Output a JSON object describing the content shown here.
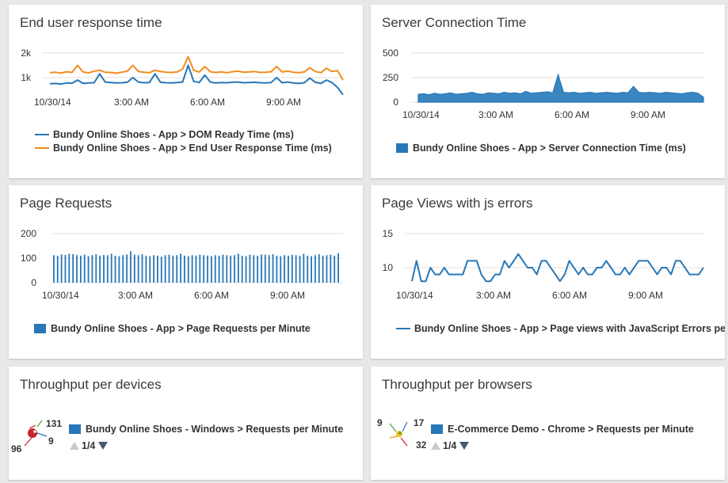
{
  "colors": {
    "blue": "#2777b8",
    "orange": "#f28c1e",
    "area_fill": "#3a86c0",
    "grid": "#e1e1e1"
  },
  "cards": {
    "end_user": {
      "title": "End user response time"
    },
    "server_conn": {
      "title": "Server Connection Time"
    },
    "page_requests": {
      "title": "Page Requests"
    },
    "page_views_js": {
      "title": "Page Views with js errors"
    },
    "tp_devices": {
      "title": "Throughput per devices",
      "legend": "Bundy Online Shoes - Windows > Requests per Minute",
      "pager": "1/4",
      "labels": [
        "131",
        "9",
        "96"
      ]
    },
    "tp_browsers": {
      "title": "Throughput per browsers",
      "legend": "E-Commerce Demo - Chrome > Requests per Minute",
      "pager": "1/4",
      "labels": [
        "9",
        "17",
        "32"
      ]
    }
  },
  "chart_data": [
    {
      "id": "end_user",
      "type": "line",
      "title": "End user response time",
      "y_ticks": [
        "2k",
        "1k"
      ],
      "ylim": [
        0,
        2200
      ],
      "x_ticks": [
        "10/30/14",
        "3:00 AM",
        "6:00 AM",
        "9:00 AM"
      ],
      "grid": true,
      "legend_position": "bottom",
      "series": [
        {
          "name": "Bundy Online Shoes - App > DOM Ready Time (ms)",
          "color": "#2777b8",
          "values": [
            750,
            760,
            740,
            780,
            770,
            900,
            760,
            780,
            790,
            1150,
            820,
            800,
            780,
            790,
            810,
            1000,
            820,
            790,
            800,
            1150,
            810,
            790,
            780,
            800,
            820,
            1500,
            850,
            800,
            1100,
            820,
            780,
            800,
            790,
            810,
            820,
            790,
            800,
            810,
            790,
            780,
            800,
            1000,
            790,
            820,
            780,
            760,
            790,
            980,
            810,
            760,
            900,
            800,
            600,
            300
          ]
        },
        {
          "name": "Bundy Online Shoes - App > End User Response Time (ms)",
          "color": "#f28c1e",
          "values": [
            1200,
            1220,
            1180,
            1240,
            1210,
            1500,
            1230,
            1190,
            1260,
            1300,
            1220,
            1210,
            1180,
            1220,
            1260,
            1500,
            1250,
            1220,
            1200,
            1300,
            1250,
            1220,
            1210,
            1230,
            1350,
            1850,
            1300,
            1230,
            1450,
            1240,
            1210,
            1230,
            1200,
            1240,
            1260,
            1220,
            1230,
            1250,
            1210,
            1220,
            1240,
            1450,
            1230,
            1260,
            1220,
            1200,
            1230,
            1400,
            1250,
            1200,
            1380,
            1250,
            1280,
            900
          ]
        }
      ]
    },
    {
      "id": "server_conn",
      "type": "area",
      "title": "Server Connection Time",
      "y_ticks": [
        "500",
        "250",
        "0"
      ],
      "ylim": [
        0,
        500
      ],
      "x_ticks": [
        "10/30/14",
        "3:00 AM",
        "6:00 AM",
        "9:00 AM"
      ],
      "grid": true,
      "legend_position": "bottom",
      "series": [
        {
          "name": "Bundy Online Shoes - App > Server Connection Time (ms)",
          "color": "#2777b8",
          "values": [
            80,
            85,
            75,
            90,
            80,
            85,
            95,
            80,
            85,
            90,
            100,
            85,
            80,
            95,
            90,
            85,
            100,
            90,
            95,
            85,
            110,
            90,
            95,
            100,
            105,
            95,
            280,
            100,
            95,
            100,
            90,
            95,
            100,
            90,
            95,
            100,
            95,
            90,
            100,
            95,
            160,
            100,
            95,
            100,
            95,
            90,
            100,
            95,
            90,
            85,
            95,
            100,
            90,
            50
          ]
        }
      ]
    },
    {
      "id": "page_requests",
      "type": "bar",
      "title": "Page Requests",
      "y_ticks": [
        "200",
        "100",
        "0"
      ],
      "ylim": [
        0,
        200
      ],
      "x_ticks": [
        "10/30/14",
        "3:00 AM",
        "6:00 AM",
        "9:00 AM"
      ],
      "grid": true,
      "legend_position": "bottom",
      "series": [
        {
          "name": "Bundy Online Shoes - App > Page Requests per Minute",
          "color": "#2777b8",
          "values": [
            112,
            110,
            115,
            113,
            118,
            116,
            112,
            110,
            114,
            108,
            112,
            116,
            110,
            113,
            112,
            118,
            110,
            108,
            112,
            115,
            128,
            114,
            112,
            116,
            110,
            108,
            112,
            110,
            106,
            112,
            114,
            110,
            112,
            118,
            110,
            108,
            112,
            110,
            114,
            112,
            110,
            108,
            112,
            110,
            114,
            112,
            110,
            112,
            118,
            110,
            108,
            114,
            112,
            110,
            115,
            114,
            112,
            116,
            110,
            108,
            112,
            110,
            114,
            112,
            110,
            118,
            110,
            108,
            112,
            116,
            110,
            112,
            114,
            110,
            120
          ]
        }
      ]
    },
    {
      "id": "page_views_js",
      "type": "line",
      "title": "Page Views with js errors",
      "y_ticks": [
        "15",
        "10"
      ],
      "ylim": [
        7,
        15
      ],
      "x_ticks": [
        "10/30/14",
        "3:00 AM",
        "6:00 AM",
        "9:00 AM"
      ],
      "grid": true,
      "legend_position": "bottom",
      "series": [
        {
          "name": "Bundy Online Shoes - App > Page views with JavaScript Errors per M",
          "color": "#2777b8",
          "values": [
            8,
            11,
            8,
            8,
            10,
            9,
            9,
            10,
            9,
            9,
            9,
            9,
            11,
            11,
            11,
            9,
            8,
            8,
            9,
            9,
            11,
            10,
            11,
            12,
            11,
            10,
            10,
            9,
            11,
            11,
            10,
            9,
            8,
            9,
            11,
            10,
            9,
            10,
            9,
            9,
            10,
            10,
            11,
            10,
            9,
            9,
            10,
            9,
            10,
            11,
            11,
            11,
            10,
            9,
            10,
            10,
            9,
            11,
            11,
            10,
            9,
            9,
            9,
            10
          ]
        }
      ]
    }
  ]
}
